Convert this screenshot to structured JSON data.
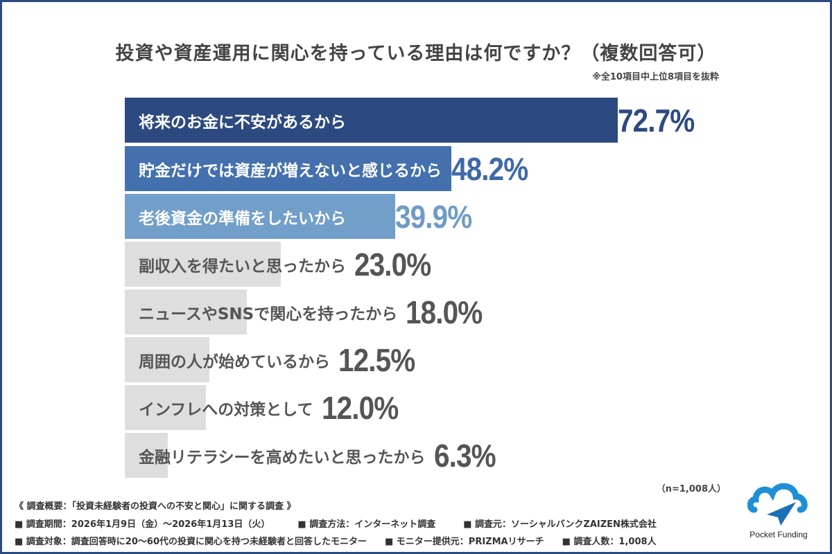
{
  "title": "投資や資産運用に関心を持っている理由は何ですか？（複数回答可）",
  "note": "※全10項目中上位8項目を抜粋",
  "sample": "（n=1,008人）",
  "chart_data": {
    "type": "bar",
    "orientation": "horizontal",
    "unit": "%",
    "xlim": [
      0,
      100
    ],
    "categories": [
      "将来のお金に不安があるから",
      "貯金だけでは資産が増えないと感じるから",
      "老後資金の準備をしたいから",
      "副収入を得たいと思ったから",
      "ニュースやSNSで関心を持ったから",
      "周囲の人が始めているから",
      "インフレへの対策として",
      "金融リテラシーを高めたいと思ったから"
    ],
    "values": [
      72.7,
      48.2,
      39.9,
      23.0,
      18.0,
      12.5,
      12.0,
      6.3
    ],
    "labels": [
      "72.7%",
      "48.2%",
      "39.9%",
      "23.0%",
      "18.0%",
      "12.5%",
      "12.0%",
      "6.3%"
    ],
    "bar_colors": [
      "#2d4a80",
      "#4470ad",
      "#729fc9",
      "#dedede",
      "#dedede",
      "#dedede",
      "#dedede",
      "#dedede"
    ],
    "label_colors": [
      "#ffffff",
      "#ffffff",
      "#ffffff",
      "#555555",
      "#555555",
      "#555555",
      "#555555",
      "#555555"
    ],
    "value_colors": [
      "#2d4a80",
      "#3f69a8",
      "#6f9bc6",
      "#555555",
      "#555555",
      "#555555",
      "#555555",
      "#555555"
    ],
    "grid": false
  },
  "footer": {
    "heading": "《 調査概要：「投資未経験者の投資への不安と関心」に関する調査 》",
    "period": "■ 調査期間：2026年1月9日（金）〜2026年1月13日（火）",
    "method": "■ 調査方法：インターネット調査",
    "source": "■ 調査元：ソーシャルバンクZAIZEN株式会社",
    "target": "■ 調査対象：調査回答時に20〜60代の投資に関心を持つ未経験者と回答したモニター",
    "provider": "■ モニター提供元：PRIZMAリサーチ",
    "count": "■ 調査人数：1,008人"
  },
  "logo": {
    "text": "Pocket Funding",
    "colors": [
      "#1e8fd6",
      "#1a6fb8"
    ]
  }
}
